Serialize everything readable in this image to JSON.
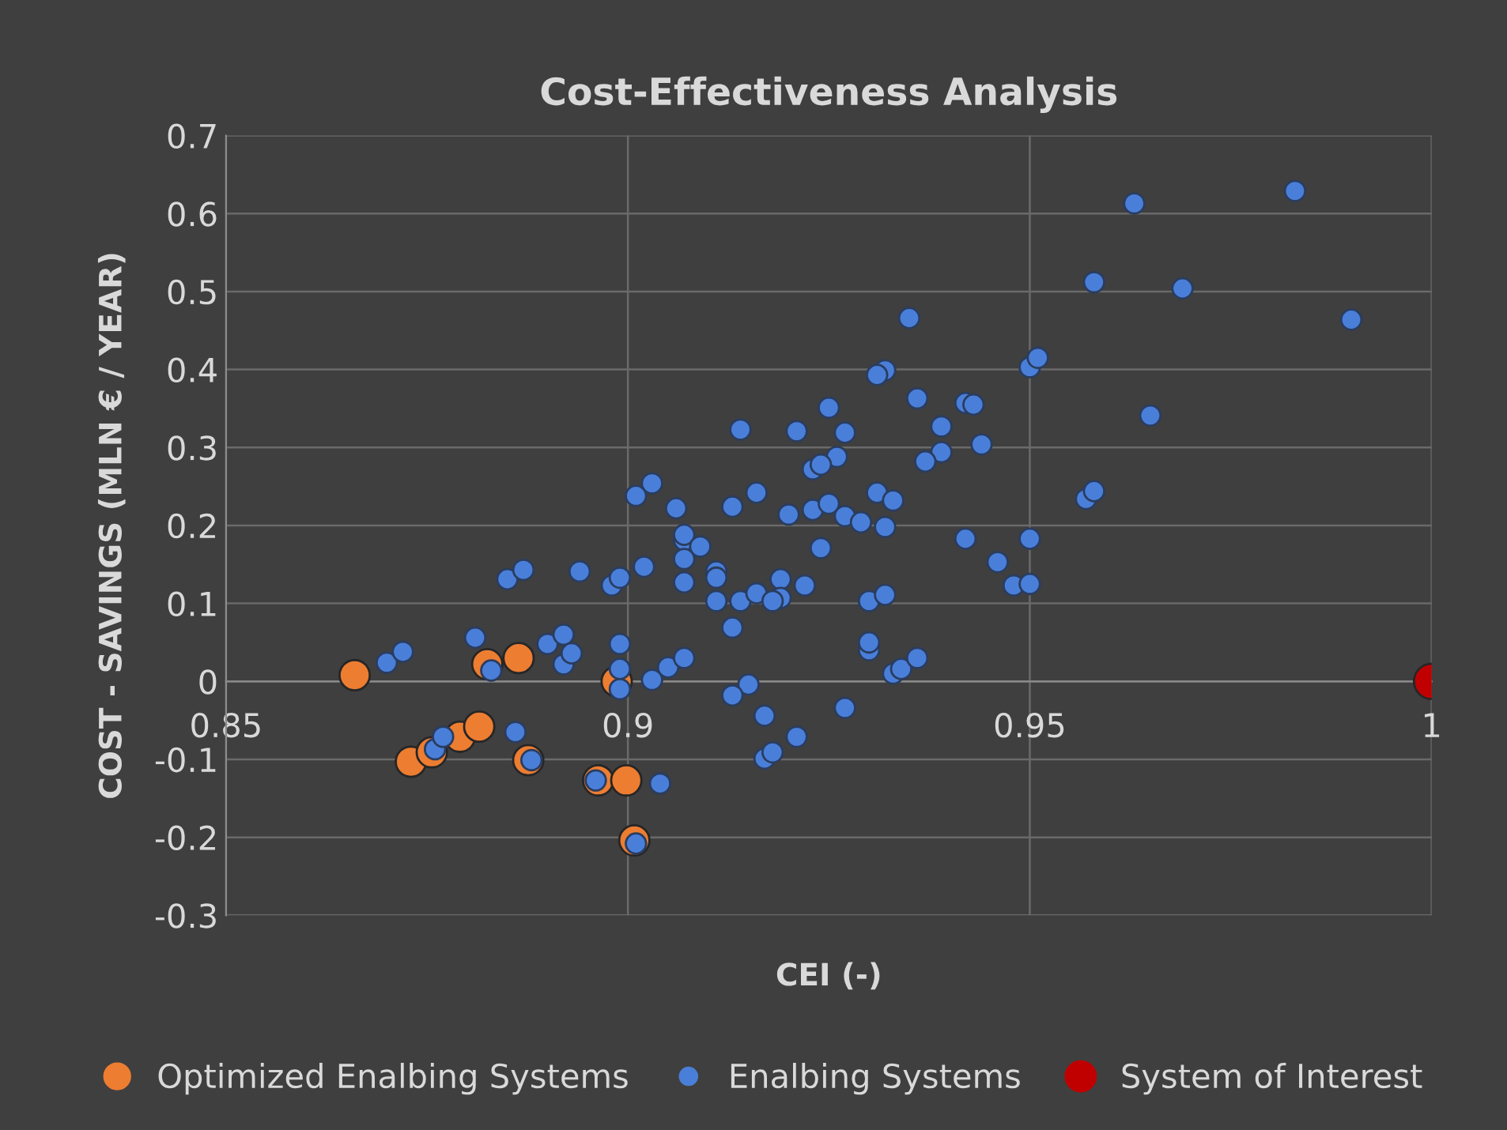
{
  "chart_data": {
    "type": "scatter",
    "title": "Cost-Effectiveness Analysis",
    "xlabel": "CEI (-)",
    "ylabel": "COST - SAVINGS (MLN € / YEAR)",
    "xlim": [
      0.85,
      1
    ],
    "xticks": [
      0.85,
      0.9,
      0.95,
      1
    ],
    "ylim": [
      -0.3,
      0.7
    ],
    "yticks": [
      -0.3,
      -0.2,
      -0.1,
      0,
      0.1,
      0.2,
      0.3,
      0.4,
      0.5,
      0.6,
      0.7
    ],
    "grid": true,
    "legend": "bottom",
    "marker": "circle",
    "series": [
      {
        "name": "Optimized Enalbing Systems",
        "color": "#ed7d31",
        "x": [
          0.866,
          0.8825,
          0.8864,
          0.8986,
          0.873,
          0.8756,
          0.8791,
          0.8815,
          0.8876,
          0.8963,
          0.8998,
          0.9008
        ],
        "values": [
          0.008,
          0.022,
          0.03,
          0.0,
          -0.103,
          -0.091,
          -0.071,
          -0.058,
          -0.101,
          -0.127,
          -0.127,
          -0.204
        ]
      },
      {
        "name": "Enalbing Systems",
        "color": "#4a7fd9",
        "x": [
          0.87,
          0.872,
          0.881,
          0.883,
          0.89,
          0.892,
          0.892,
          0.893,
          0.899,
          0.899,
          0.899,
          0.903,
          0.905,
          0.907,
          0.885,
          0.887,
          0.894,
          0.898,
          0.899,
          0.902,
          0.907,
          0.907,
          0.907,
          0.886,
          0.876,
          0.877,
          0.888,
          0.896,
          0.901,
          0.904,
          0.932,
          0.931,
          0.936,
          0.942,
          0.943,
          0.925,
          0.914,
          0.921,
          0.927,
          0.939,
          0.944,
          0.939,
          0.937,
          0.926,
          0.923,
          0.924,
          0.903,
          0.901,
          0.906,
          0.913,
          0.916,
          0.92,
          0.923,
          0.925,
          0.927,
          0.929,
          0.931,
          0.933,
          0.932,
          0.942,
          0.946,
          0.948,
          0.924,
          0.907,
          0.909,
          0.911,
          0.911,
          0.911,
          0.914,
          0.916,
          0.919,
          0.919,
          0.918,
          0.922,
          0.913,
          0.93,
          0.932,
          0.93,
          0.93,
          0.933,
          0.934,
          0.936,
          0.927,
          0.915,
          0.913,
          0.917,
          0.921,
          0.917,
          0.918,
          0.963,
          0.983,
          0.958,
          0.969,
          0.99,
          0.935,
          0.95,
          0.951,
          0.965,
          0.957,
          0.958,
          0.95,
          0.95
        ],
        "values": [
          0.024,
          0.038,
          0.056,
          0.014,
          0.048,
          0.06,
          0.022,
          0.036,
          0.048,
          0.016,
          -0.01,
          0.002,
          0.018,
          0.03,
          0.131,
          0.143,
          0.141,
          0.123,
          0.133,
          0.147,
          0.181,
          0.157,
          0.127,
          -0.065,
          -0.087,
          -0.071,
          -0.101,
          -0.127,
          -0.208,
          -0.131,
          0.399,
          0.393,
          0.363,
          0.357,
          0.355,
          0.351,
          0.323,
          0.321,
          0.319,
          0.327,
          0.304,
          0.294,
          0.282,
          0.288,
          0.272,
          0.278,
          0.254,
          0.238,
          0.222,
          0.224,
          0.242,
          0.214,
          0.22,
          0.228,
          0.212,
          0.204,
          0.242,
          0.232,
          0.198,
          0.183,
          0.153,
          0.123,
          0.171,
          0.188,
          0.173,
          0.141,
          0.133,
          0.103,
          0.103,
          0.113,
          0.131,
          0.107,
          0.103,
          0.123,
          0.069,
          0.103,
          0.111,
          0.04,
          0.05,
          0.01,
          0.016,
          0.03,
          -0.034,
          -0.004,
          -0.018,
          -0.044,
          -0.071,
          -0.099,
          -0.091,
          0.613,
          0.629,
          0.512,
          0.504,
          0.464,
          0.466,
          0.403,
          0.415,
          0.341,
          0.234,
          0.244,
          0.183,
          0.125
        ]
      },
      {
        "name": "System of Interest",
        "color": "#c00000",
        "x": [
          1.0
        ],
        "values": [
          0.0
        ]
      }
    ]
  }
}
